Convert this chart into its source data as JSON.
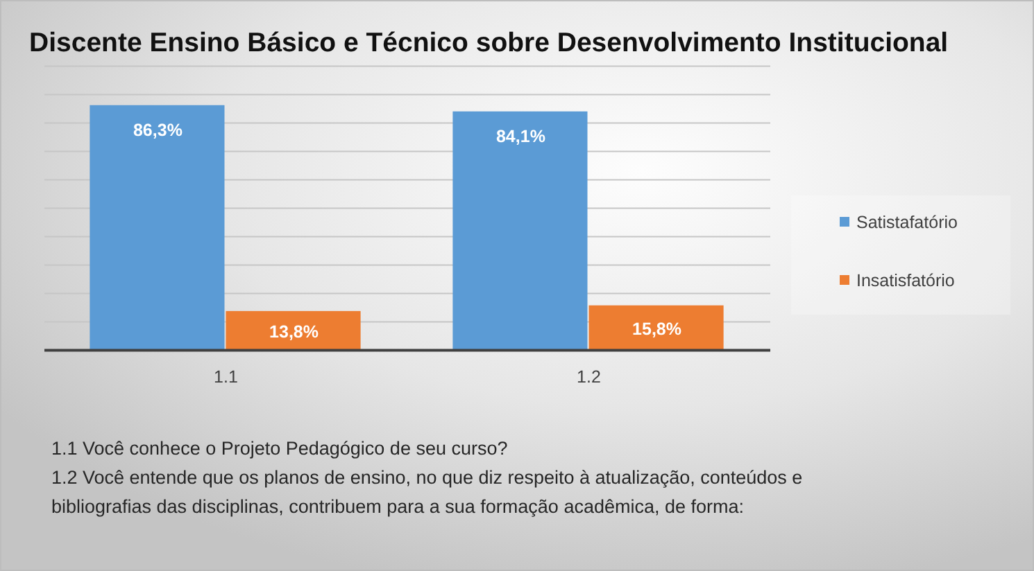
{
  "chart_data": {
    "type": "bar",
    "title": "Discente Ensino Básico e Técnico sobre Desenvolvimento Institucional",
    "categories": [
      "1.1",
      "1.2"
    ],
    "series": [
      {
        "name": "Satistafatório",
        "color": "#5b9bd5",
        "values": [
          86.3,
          84.1
        ],
        "value_labels": [
          "86,3%",
          "84,1%"
        ]
      },
      {
        "name": "Insatisfatório",
        "color": "#ed7d31",
        "values": [
          13.8,
          15.8
        ],
        "value_labels": [
          "13,8%",
          "15,8%"
        ]
      }
    ],
    "ylim": [
      0,
      100
    ],
    "yticks": [
      {
        "value": 0,
        "label": null
      },
      {
        "value": 10,
        "label": null
      },
      {
        "value": 20,
        "label": null
      },
      {
        "value": 30,
        "label": null
      },
      {
        "value": 40,
        "label": null
      },
      {
        "value": 50,
        "label": null
      },
      {
        "value": 60,
        "label": null
      },
      {
        "value": 70,
        "label": null
      },
      {
        "value": 80,
        "label": null
      },
      {
        "value": 90,
        "label": null
      },
      {
        "value": 100,
        "label": null
      }
    ],
    "tick_labels": "x",
    "grid": "y",
    "legend": "right",
    "annotations": [
      "1.1 Você conhece o Projeto Pedagógico de seu curso?",
      "1.2 Você entende que os planos de ensino, no que diz respeito à atualização, conteúdos e bibliografias das disciplinas, contribuem para a sua formação acadêmica, de forma:"
    ]
  }
}
